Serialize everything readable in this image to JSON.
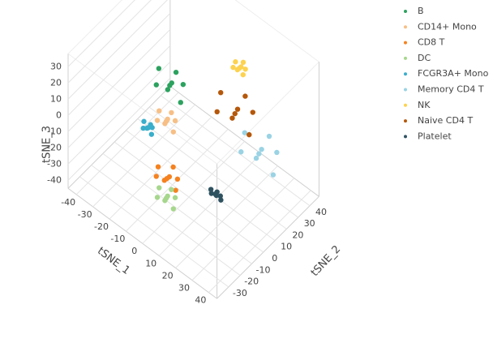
{
  "chart_data": {
    "type": "scatter3d",
    "xlabel": "tSNE_1",
    "ylabel": "tSNE_2",
    "zlabel": "tSNE_3",
    "xlim": [
      -45,
      45
    ],
    "ylim": [
      -40,
      48
    ],
    "zlim": [
      -45,
      38
    ],
    "xticks": [
      -40,
      -30,
      -20,
      -10,
      0,
      10,
      20,
      30,
      40
    ],
    "yticks": [
      -30,
      -20,
      -10,
      0,
      10,
      20,
      30,
      40
    ],
    "zticks": [
      -40,
      -30,
      -20,
      -10,
      0,
      10,
      20,
      30
    ],
    "grid": true,
    "legend": "top-right",
    "series": [
      {
        "name": "B",
        "color": "#2ca25f",
        "x": [
          -6,
          0,
          -12,
          -3,
          -9,
          2,
          -14,
          -5
        ],
        "y": [
          -8,
          -5,
          -11,
          -14,
          -2,
          -10,
          -6,
          -4
        ],
        "z": [
          25,
          28,
          23,
          29,
          20,
          22,
          28,
          31
        ]
      },
      {
        "name": "CD14+ Mono",
        "color": "#f7bf85",
        "x": [
          -6,
          -2,
          -10,
          -4,
          -8,
          -1,
          -11,
          -5
        ],
        "y": [
          -11,
          -9,
          -13,
          -15,
          -7,
          -12,
          -10,
          -8
        ],
        "z": [
          5,
          7,
          4,
          8,
          2,
          3,
          7,
          9
        ]
      },
      {
        "name": "CD8 T",
        "color": "#f5821f",
        "x": [
          0,
          5,
          -5,
          2,
          -2,
          6,
          -6,
          1
        ],
        "y": [
          -19,
          -17,
          -21,
          -24,
          -14,
          -20,
          -18,
          -15
        ],
        "z": [
          -20,
          -18,
          -21,
          -16,
          -24,
          -22,
          -18,
          -15
        ]
      },
      {
        "name": "DC",
        "color": "#a6d78c",
        "x": [
          1,
          5,
          -3,
          3,
          -1,
          6,
          -4,
          2
        ],
        "y": [
          -21,
          -19,
          -23,
          -25,
          -17,
          -22,
          -20,
          -18
        ],
        "z": [
          -30,
          -28,
          -31,
          -27,
          -33,
          -32,
          -28,
          -26
        ]
      },
      {
        "name": "FCGR3A+ Mono",
        "color": "#3aaecb",
        "x": [
          -13,
          -11,
          -15,
          -12,
          -14,
          -10,
          -16,
          -12
        ],
        "y": [
          -17,
          -16,
          -18,
          -19,
          -15,
          -18,
          -16,
          -16
        ],
        "z": [
          0,
          1,
          -1,
          2,
          -2,
          -1,
          1,
          2
        ]
      },
      {
        "name": "Memory CD4 T",
        "color": "#9ad3e4",
        "x": [
          29,
          37,
          21,
          33,
          25,
          39,
          19,
          31
        ],
        "y": [
          19,
          23,
          15,
          11,
          27,
          17,
          21,
          25
        ],
        "z": [
          -10,
          -6,
          -12,
          -4,
          -16,
          -14,
          -6,
          -2
        ]
      },
      {
        "name": "NK",
        "color": "#fdd24e",
        "x": [
          15,
          18,
          12,
          16,
          14,
          18,
          12,
          16
        ],
        "y": [
          22,
          23,
          21,
          19,
          25,
          21,
          23,
          24
        ],
        "z": [
          30,
          31,
          29,
          32,
          28,
          29,
          31,
          33
        ]
      },
      {
        "name": "Naive CD4 T",
        "color": "#b5570a",
        "x": [
          18,
          26,
          10,
          22,
          14,
          28,
          8,
          20
        ],
        "y": [
          14,
          18,
          10,
          6,
          22,
          12,
          16,
          20
        ],
        "z": [
          10,
          14,
          8,
          16,
          4,
          6,
          14,
          18
        ]
      },
      {
        "name": "Platelet",
        "color": "#2f5261",
        "x": [
          17,
          19,
          15,
          18,
          16,
          20,
          14,
          17
        ],
        "y": [
          -1,
          0,
          -2,
          -2,
          0,
          -1,
          -1,
          0
        ],
        "z": [
          -30,
          -30,
          -30,
          -29,
          -31,
          -31,
          -29,
          -29
        ]
      }
    ]
  }
}
